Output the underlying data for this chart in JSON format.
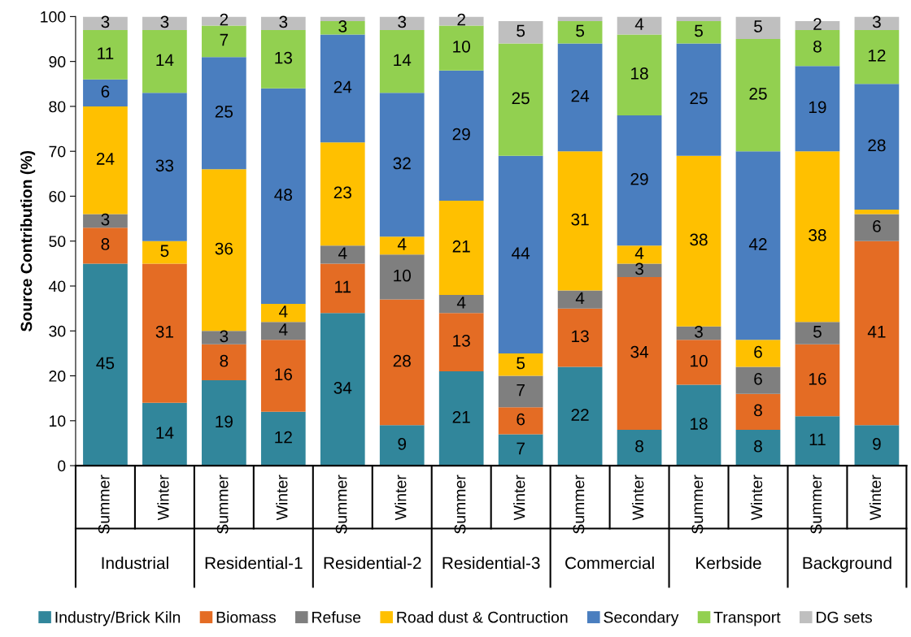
{
  "chart_data": {
    "type": "bar",
    "stacked": true,
    "ylabel": "Source Contribution (%)",
    "categories": [
      "Summer",
      "Winter",
      "Summer",
      "Winter",
      "Summer",
      "Winter",
      "Summer",
      "Winter",
      "Summer",
      "Winter",
      "Summer",
      "Winter",
      "Summer",
      "Winter"
    ],
    "annotations": [
      "Industrial",
      "Residential-1",
      "Residential-2",
      "Residential-3",
      "Commercial",
      "Kerbside",
      "Background"
    ],
    "series": [
      {
        "name": "Industry/Brick Kiln",
        "color": "#31869b",
        "values": [
          45,
          14,
          19,
          12,
          34,
          9,
          21,
          7,
          22,
          8,
          18,
          8,
          11,
          9
        ]
      },
      {
        "name": "Biomass",
        "color": "#e46c24",
        "values": [
          8,
          31,
          8,
          16,
          11,
          28,
          13,
          6,
          13,
          34,
          10,
          8,
          16,
          41
        ]
      },
      {
        "name": "Refuse",
        "color": "#7f7f7f",
        "values": [
          3,
          0,
          3,
          4,
          4,
          10,
          4,
          7,
          4,
          3,
          3,
          6,
          5,
          6
        ],
        "value_labels": [
          "3",
          null,
          "3",
          "4",
          "4",
          "10",
          "4",
          "7",
          "4",
          "3",
          "3",
          "6",
          "5",
          "6"
        ]
      },
      {
        "name": "Road dust & Contruction",
        "color": "#ffc000",
        "values": [
          24,
          5,
          36,
          4,
          23,
          4,
          21,
          5,
          31,
          4,
          38,
          6,
          38,
          1
        ],
        "value_labels": [
          "24",
          "5",
          "36",
          "4",
          "23",
          "4",
          "21",
          "5",
          "31",
          "4",
          "38",
          "6",
          "38",
          null
        ]
      },
      {
        "name": "Secondary",
        "color": "#4a7ebf",
        "values": [
          6,
          33,
          25,
          48,
          24,
          32,
          29,
          44,
          24,
          29,
          25,
          42,
          19,
          28
        ]
      },
      {
        "name": "Transport",
        "color": "#92d050",
        "values": [
          11,
          14,
          7,
          13,
          3,
          14,
          10,
          25,
          5,
          18,
          5,
          25,
          8,
          12
        ]
      },
      {
        "name": "DG sets",
        "color": "#bfbfbf",
        "values": [
          3,
          3,
          2,
          3,
          1,
          3,
          2,
          5,
          1,
          4,
          1,
          5,
          2,
          3
        ],
        "value_labels": [
          "3",
          "3",
          "2",
          "3",
          null,
          "3",
          "2",
          "5",
          null,
          "4",
          null,
          "5",
          "2",
          "3"
        ]
      }
    ],
    "data_labels": true,
    "ylim": [
      0,
      100
    ],
    "yticks": [
      0,
      10,
      20,
      30,
      40,
      50,
      60,
      70,
      80,
      90,
      100
    ],
    "grid": false,
    "legend": "bottom"
  }
}
